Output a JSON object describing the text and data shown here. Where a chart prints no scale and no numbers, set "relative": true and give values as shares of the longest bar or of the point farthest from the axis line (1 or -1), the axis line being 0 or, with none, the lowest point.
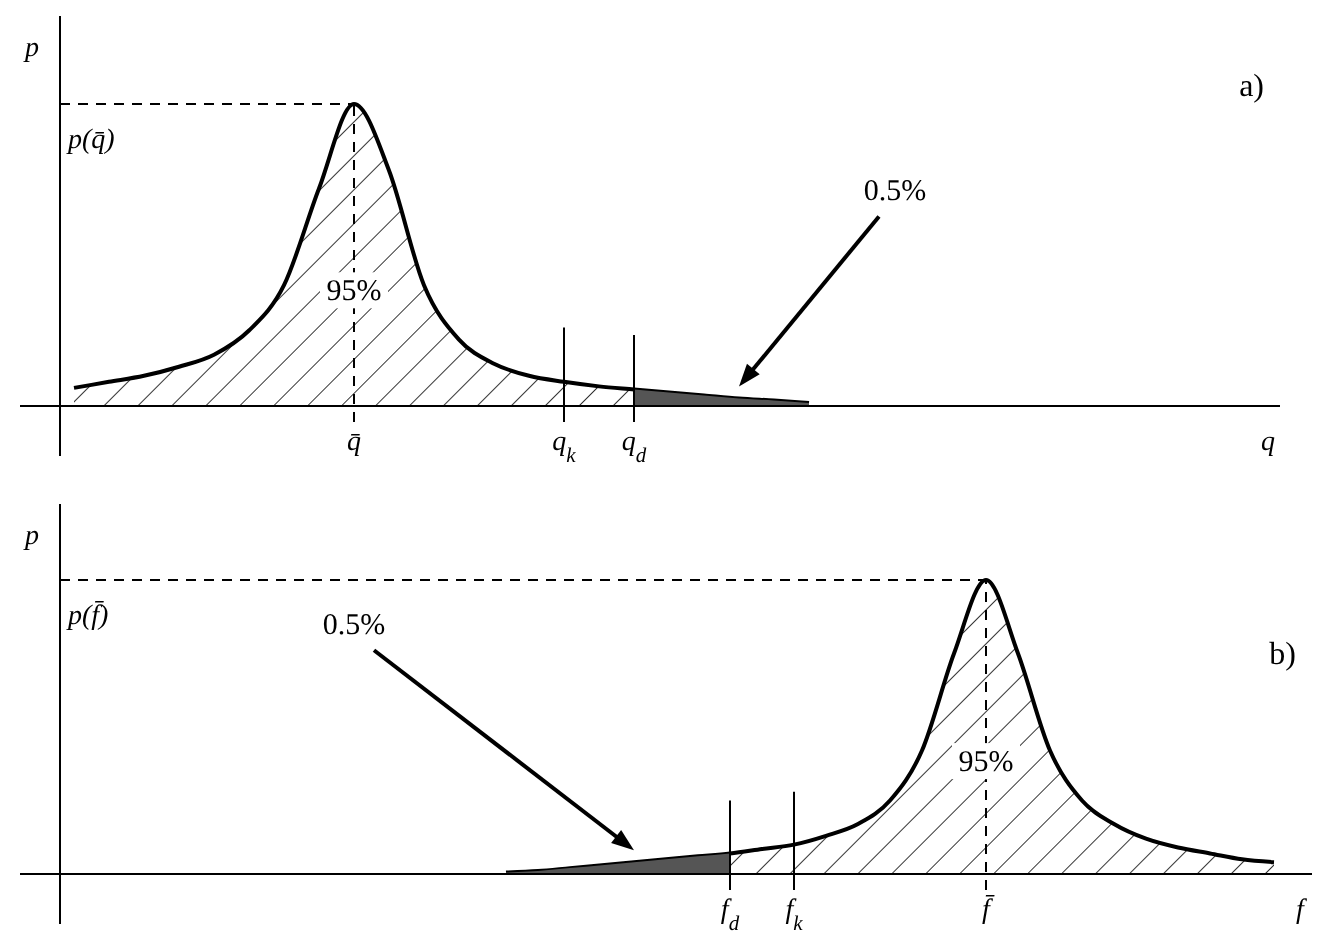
{
  "chart_data": [
    {
      "type": "area",
      "relative": true,
      "xlabel": "q",
      "ylabel": "p",
      "annotations": [
        "a)",
        "95%",
        "0.5%"
      ],
      "categories": [
        null,
        null,
        null,
        null,
        null,
        null,
        null,
        null,
        "q̄",
        null,
        null,
        null,
        null,
        null,
        "q$_{k}$",
        null,
        "q$_{d}$",
        null,
        null,
        null,
        null,
        null,
        null,
        null,
        null,
        null,
        null,
        null,
        null,
        null,
        null,
        null,
        null,
        null
      ],
      "series": [
        {
          "color": "#000000",
          "values": [
            0.06,
            0.08,
            0.1,
            0.13,
            0.17,
            0.25,
            0.4,
            0.72,
            1,
            0.78,
            0.4,
            0.22,
            0.14,
            0.1,
            0.08,
            0.065,
            0.055,
            0.045,
            0.035,
            0.025,
            0.018,
            0.01,
            null,
            null,
            null,
            null,
            null,
            null,
            null,
            null,
            null,
            null,
            null,
            null
          ]
        },
        {
          "color": "#555555",
          "values": [
            null,
            null,
            null,
            null,
            null,
            null,
            null,
            null,
            null,
            null,
            null,
            null,
            null,
            null,
            null,
            null,
            0.055,
            0.045,
            0.035,
            0.025,
            0.018,
            0.01,
            null,
            null,
            null,
            null,
            null,
            null,
            null,
            null,
            null,
            null,
            null,
            null
          ]
        }
      ],
      "ref_lines": [
        {
          "axis": "y",
          "value": 1,
          "label": "p(q̄)",
          "line_style": "dashed"
        },
        {
          "axis": "x",
          "value": "q̄",
          "line_style": "dashed"
        },
        {
          "axis": "x",
          "value": "q$_{k}$",
          "line_style": "solid"
        },
        {
          "axis": "x",
          "value": "q$_{d}$",
          "line_style": "solid"
        }
      ]
    },
    {
      "type": "area",
      "relative": true,
      "xlabel": "f",
      "ylabel": "p",
      "annotations": [
        "b)",
        "95%",
        "0.5%"
      ],
      "categories": [
        null,
        null,
        null,
        null,
        null,
        null,
        null,
        null,
        null,
        null,
        null,
        null,
        null,
        null,
        null,
        null,
        null,
        null,
        null,
        null,
        null,
        "f$_{d}$",
        null,
        "f$_{k}$",
        null,
        null,
        null,
        null,
        null,
        "f̄",
        null,
        null,
        null,
        null,
        null,
        null,
        null,
        null,
        null,
        null
      ],
      "series": [
        {
          "color": "#000000",
          "values": [
            null,
            null,
            null,
            null,
            null,
            null,
            null,
            null,
            null,
            null,
            null,
            null,
            null,
            null,
            0.005,
            0.01,
            0.02,
            0.03,
            0.04,
            0.05,
            0.06,
            0.07,
            0.085,
            0.1,
            0.13,
            0.17,
            0.25,
            0.42,
            0.75,
            1,
            0.75,
            0.42,
            0.25,
            0.17,
            0.12,
            0.09,
            0.07,
            0.05,
            0.04,
            null
          ]
        },
        {
          "color": "#555555",
          "values": [
            null,
            null,
            null,
            null,
            null,
            null,
            null,
            null,
            null,
            null,
            null,
            null,
            null,
            null,
            0.005,
            0.01,
            0.02,
            0.03,
            0.04,
            0.05,
            0.06,
            0.07,
            null,
            null,
            null,
            null,
            null,
            null,
            null,
            null,
            null,
            null,
            null,
            null,
            null,
            null,
            null,
            null,
            null,
            null
          ]
        }
      ],
      "ref_lines": [
        {
          "axis": "y",
          "value": 1,
          "label": "p(f̄)",
          "line_style": "dashed"
        },
        {
          "axis": "x",
          "value": "f̄",
          "line_style": "dashed"
        },
        {
          "axis": "x",
          "value": "f$_{k}$",
          "line_style": "solid"
        },
        {
          "axis": "x",
          "value": "f$_{d}$",
          "line_style": "solid"
        }
      ]
    }
  ]
}
